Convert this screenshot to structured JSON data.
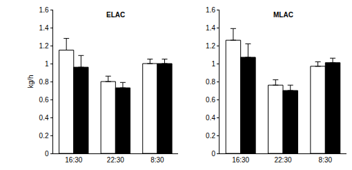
{
  "chart_data": [
    {
      "type": "bar",
      "title": "ELAC",
      "y_label": "kg/h",
      "categories": [
        "16:30",
        "22:30",
        "8:30"
      ],
      "series": [
        {
          "color": "#ffffff",
          "values": [
            1.15,
            0.8,
            1.0
          ],
          "error": [
            0.13,
            0.06,
            0.05
          ]
        },
        {
          "color": "#000000",
          "values": [
            0.96,
            0.73,
            1.0
          ],
          "error": [
            0.13,
            0.06,
            0.05
          ]
        }
      ],
      "ylim": [
        0,
        1.6
      ],
      "yticks": [
        0,
        0.2,
        0.4,
        0.6,
        0.8,
        1,
        1.2,
        1.4,
        1.6
      ],
      "grid": false
    },
    {
      "type": "bar",
      "title": "MLAC",
      "categories": [
        "16:30",
        "22:30",
        "8:30"
      ],
      "series": [
        {
          "color": "#ffffff",
          "values": [
            1.26,
            0.76,
            0.97
          ],
          "error": [
            0.13,
            0.06,
            0.05
          ]
        },
        {
          "color": "#000000",
          "values": [
            1.07,
            0.7,
            1.01
          ],
          "error": [
            0.15,
            0.06,
            0.05
          ]
        }
      ],
      "ylim": [
        0,
        1.6
      ],
      "yticks": [
        0,
        0.2,
        0.4,
        0.6,
        0.8,
        1,
        1.2,
        1.4,
        1.6
      ],
      "grid": false
    }
  ]
}
